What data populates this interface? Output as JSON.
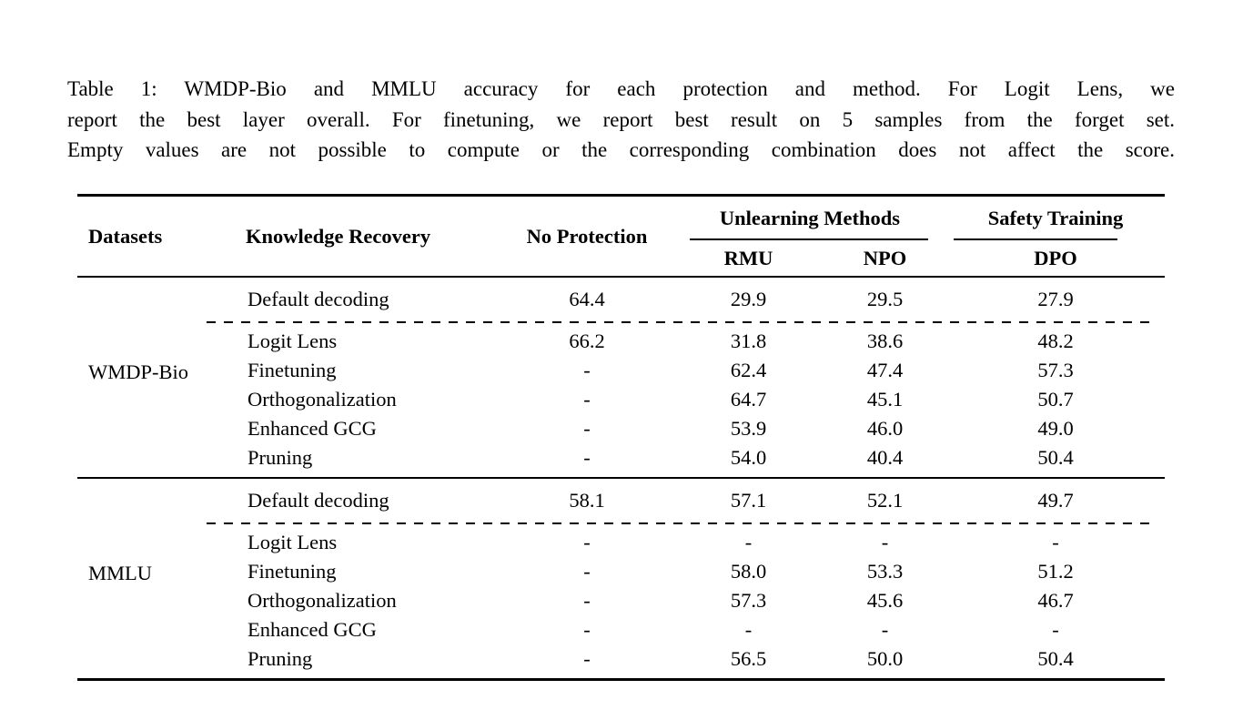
{
  "colors": {
    "text": "#000000",
    "background": "#ffffff",
    "rule": "#000000"
  },
  "caption": {
    "label": "Table 1:",
    "lines": [
      "Table 1: WMDP-Bio and MMLU accuracy for each protection and method. For Logit Lens, we",
      "report the best layer overall. For finetuning, we report best result on 5 samples from the forget set.",
      "Empty values are not possible to compute or the corresponding combination does not affect the score."
    ]
  },
  "table": {
    "headers": {
      "datasets": "Datasets",
      "knowledge_recovery": "Knowledge Recovery",
      "no_protection": "No Protection",
      "group_unlearning": "Unlearning Methods",
      "group_safety": "Safety Training",
      "rmu": "RMU",
      "npo": "NPO",
      "dpo": "DPO"
    },
    "value_columns": [
      "No Protection",
      "RMU",
      "NPO",
      "DPO"
    ],
    "blocks": [
      {
        "dataset": "WMDP-Bio",
        "rows": [
          {
            "method": "Default decoding",
            "values": [
              "64.4",
              "29.9",
              "29.5",
              "27.9"
            ],
            "divider_after": true
          },
          {
            "method": "Logit Lens",
            "values": [
              "66.2",
              "31.8",
              "38.6",
              "48.2"
            ]
          },
          {
            "method": "Finetuning",
            "values": [
              "-",
              "62.4",
              "47.4",
              "57.3"
            ]
          },
          {
            "method": "Orthogonalization",
            "values": [
              "-",
              "64.7",
              "45.1",
              "50.7"
            ]
          },
          {
            "method": "Enhanced GCG",
            "values": [
              "-",
              "53.9",
              "46.0",
              "49.0"
            ]
          },
          {
            "method": "Pruning",
            "values": [
              "-",
              "54.0",
              "40.4",
              "50.4"
            ]
          }
        ]
      },
      {
        "dataset": "MMLU",
        "rows": [
          {
            "method": "Default decoding",
            "values": [
              "58.1",
              "57.1",
              "52.1",
              "49.7"
            ],
            "divider_after": true
          },
          {
            "method": "Logit Lens",
            "values": [
              "-",
              "-",
              "-",
              "-"
            ]
          },
          {
            "method": "Finetuning",
            "values": [
              "-",
              "58.0",
              "53.3",
              "51.2"
            ]
          },
          {
            "method": "Orthogonalization",
            "values": [
              "-",
              "57.3",
              "45.6",
              "46.7"
            ]
          },
          {
            "method": "Enhanced GCG",
            "values": [
              "-",
              "-",
              "-",
              "-"
            ]
          },
          {
            "method": "Pruning",
            "values": [
              "-",
              "56.5",
              "50.0",
              "50.4"
            ]
          }
        ]
      }
    ]
  }
}
